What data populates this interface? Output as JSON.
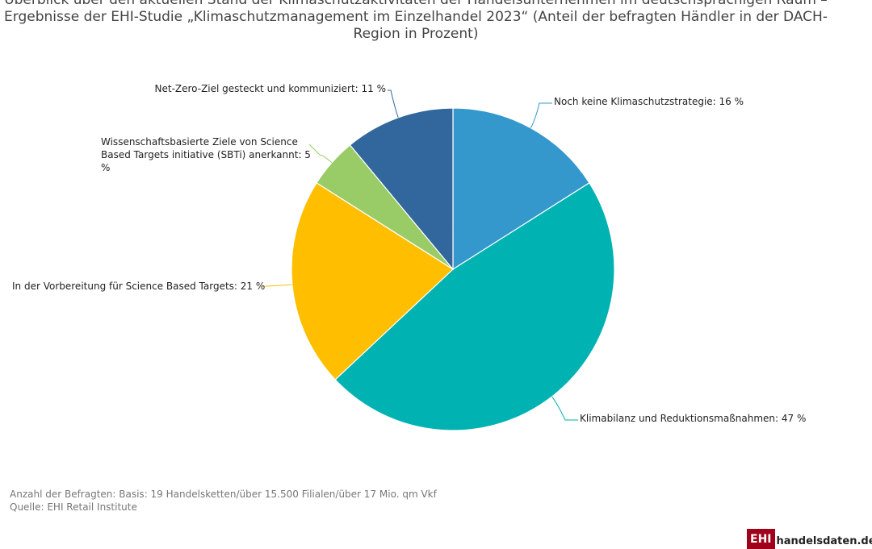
{
  "title": "Überblick über den aktuellen Stand der Klimaschutzaktivitäten der Handelsunternehmen im deutschsprachigen Raum – Ergebnisse der EHI-Studie „Klimaschutzmanagement im Einzelhandel 2023“ (Anteil der befragten Händler in der DACH-Region in Prozent)",
  "chart_data": {
    "type": "pie",
    "unit": "%",
    "start_angle_deg": 0,
    "direction": "clockwise",
    "slices": [
      {
        "label": "Noch keine Klimaschutzstrategie: 16 %",
        "value": 16,
        "color": "#3498cc"
      },
      {
        "label": "Klimabilanz und Reduktionsmaßnahmen: 47 %",
        "value": 47,
        "color": "#00b2b2"
      },
      {
        "label": "In der Vorbereitung für Science Based Targets: 21 %",
        "value": 21,
        "color": "#ffbf00"
      },
      {
        "label": "Wissenschaftsbasierte Ziele von Science Based Targets initiative (SBTi) anerkannt: 5 %",
        "value": 5,
        "color": "#99cc66"
      },
      {
        "label": "Net-Zero-Ziel gesteckt und kommuniziert: 11 %",
        "value": 11,
        "color": "#31679c"
      }
    ]
  },
  "footer": {
    "note": "Anzahl der Befragten: Basis: 19 Handelsketten/über 15.500 Filialen/über 17 Mio. qm Vkf",
    "source": "Quelle: EHI Retail Institute"
  },
  "logo": {
    "mark": "EHI",
    "text": "handelsdaten.de"
  }
}
